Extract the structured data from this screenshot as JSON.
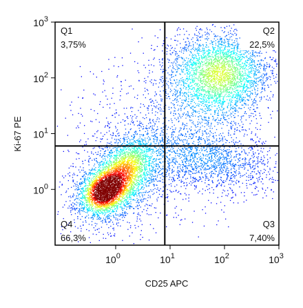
{
  "chart_data": {
    "type": "scatter",
    "x_label": "CD25 APC",
    "y_label": "Ki-67 PE",
    "log_x": true,
    "log_y": true,
    "xlim": [
      0.077,
      1000
    ],
    "ylim": [
      0.1,
      1000
    ],
    "xticks": [
      {
        "value": 1,
        "label": "10^0"
      },
      {
        "value": 10,
        "label": "10^1"
      },
      {
        "value": 100,
        "label": "10^2"
      },
      {
        "value": 1000,
        "label": "10^3"
      }
    ],
    "yticks": [
      {
        "value": 1,
        "label": "10^0"
      },
      {
        "value": 10,
        "label": "10^1"
      },
      {
        "value": 100,
        "label": "10^2"
      },
      {
        "value": 1000,
        "label": "10^3"
      }
    ],
    "gate_x": 8,
    "gate_y": 6,
    "quadrant_names": [
      "Q1",
      "Q2",
      "Q3",
      "Q4"
    ],
    "values": [
      3.75,
      22.5,
      7.4,
      66.3
    ],
    "value_labels": [
      "3,75%",
      "22,5%",
      "7,40%",
      "66,3%"
    ]
  }
}
